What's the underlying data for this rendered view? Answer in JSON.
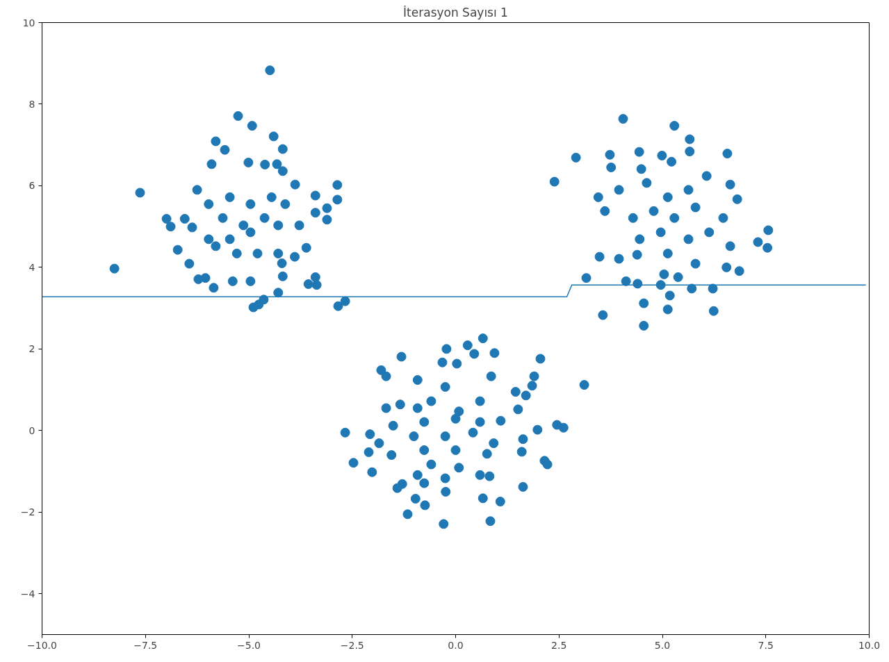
{
  "chart_data": {
    "type": "scatter",
    "title": "İterasyon Sayısı 1",
    "xlim": [
      -10,
      10
    ],
    "ylim": [
      -5,
      10
    ],
    "xticks": [
      {
        "value": -10,
        "label": "−10.0"
      },
      {
        "value": -7.5,
        "label": "−7.5"
      },
      {
        "value": -5,
        "label": "−5.0"
      },
      {
        "value": -2.5,
        "label": "−2.5"
      },
      {
        "value": 0,
        "label": "0.0"
      },
      {
        "value": 2.5,
        "label": "2.5"
      },
      {
        "value": 5,
        "label": "5.0"
      },
      {
        "value": 7.5,
        "label": "7.5"
      },
      {
        "value": 10,
        "label": "10.0"
      }
    ],
    "yticks": [
      {
        "value": -4,
        "label": "−4"
      },
      {
        "value": -2,
        "label": "−2"
      },
      0,
      2,
      4,
      6,
      8,
      10
    ],
    "grid": false,
    "series": [
      {
        "marker": "circle",
        "color": "#1f77b4",
        "x": [
          -4.49,
          -5.26,
          -4.92,
          -4.4,
          -5.8,
          -4.18,
          -5.58,
          -5.9,
          -5.01,
          -4.61,
          -4.32,
          -4.18,
          -2.86,
          -7.63,
          -6.25,
          -3.88,
          -3.39,
          -2.86,
          -3.11,
          -3.11,
          -6.99,
          -6.89,
          -6.55,
          -6.37,
          -5.97,
          -5.46,
          -4.96,
          -4.45,
          -4.12,
          -5.63,
          -5.13,
          -4.62,
          -4.29,
          -3.78,
          -5.97,
          -5.46,
          -4.96,
          -4.79,
          -5.29,
          -5.8,
          -6.72,
          -6.44,
          -4.29,
          -3.61,
          -3.89,
          -8.25,
          -6.22,
          -6.05,
          -5.85,
          -5.39,
          -4.96,
          -4.18,
          -4.2,
          -3.56,
          -3.36,
          -3.39,
          -4.29,
          -4.64,
          -4.89,
          -4.76,
          -2.84,
          -2.67,
          -3.39,
          4.05,
          5.29,
          5.66,
          5.66,
          2.91,
          3.73,
          4.44,
          4.99,
          6.57,
          5.22,
          2.39,
          3.76,
          4.49,
          6.64,
          6.07,
          3.45,
          3.95,
          4.62,
          5.13,
          5.63,
          6.81,
          3.61,
          4.29,
          4.79,
          5.29,
          5.8,
          6.47,
          7.56,
          7.31,
          7.54,
          4.45,
          4.96,
          5.63,
          6.13,
          6.64,
          3.48,
          3.95,
          4.39,
          5.13,
          5.8,
          6.86,
          6.55,
          3.16,
          4.12,
          4.4,
          5.04,
          5.38,
          4.96,
          5.71,
          6.22,
          5.18,
          4.55,
          3.56,
          5.13,
          6.24,
          4.55,
          0.66,
          0.29,
          -0.22,
          0.94,
          0.45,
          2.05,
          -1.31,
          -1.8,
          -1.68,
          -0.32,
          0.03,
          0.86,
          1.9,
          3.11,
          1.85,
          1.45,
          1.7,
          -0.92,
          -0.25,
          0.59,
          -1.34,
          -1.68,
          -0.92,
          -0.59,
          0.08,
          1.51,
          -0.76,
          0.0,
          0.59,
          1.09,
          2.45,
          2.61,
          1.98,
          -2.67,
          -2.07,
          -1.51,
          -1.01,
          -0.25,
          0.42,
          0.92,
          1.63,
          -1.85,
          -2.1,
          -1.55,
          -0.76,
          0.0,
          0.76,
          1.6,
          2.15,
          2.22,
          -2.47,
          -0.59,
          0.08,
          0.59,
          -2.02,
          -0.92,
          -0.25,
          0.82,
          -0.76,
          -1.29,
          -1.41,
          1.63,
          -0.24,
          0.66,
          1.08,
          -0.97,
          -0.74,
          -1.16,
          0.84,
          -0.29
        ],
        "values": [
          8.83,
          7.71,
          7.47,
          7.21,
          7.09,
          6.9,
          6.88,
          6.53,
          6.57,
          6.52,
          6.53,
          6.36,
          6.02,
          5.83,
          5.9,
          6.03,
          5.76,
          5.66,
          5.45,
          5.17,
          5.19,
          5.0,
          5.19,
          4.98,
          5.55,
          5.72,
          5.55,
          5.72,
          5.55,
          5.21,
          5.03,
          5.21,
          5.03,
          5.03,
          4.69,
          4.69,
          4.86,
          4.34,
          4.34,
          4.52,
          4.43,
          4.09,
          4.34,
          4.48,
          4.26,
          3.97,
          3.71,
          3.74,
          3.5,
          3.66,
          3.66,
          3.78,
          4.1,
          3.59,
          3.57,
          3.76,
          3.38,
          3.21,
          3.02,
          3.09,
          3.05,
          3.17,
          5.34,
          7.64,
          7.47,
          7.14,
          6.84,
          6.69,
          6.76,
          6.83,
          6.74,
          6.79,
          6.59,
          6.1,
          6.45,
          6.41,
          6.03,
          6.24,
          5.72,
          5.9,
          6.07,
          5.72,
          5.9,
          5.67,
          5.38,
          5.21,
          5.38,
          5.21,
          5.47,
          5.21,
          4.91,
          4.62,
          4.48,
          4.69,
          4.86,
          4.69,
          4.86,
          4.52,
          4.26,
          4.21,
          4.31,
          4.34,
          4.09,
          3.91,
          4.0,
          3.74,
          3.66,
          3.6,
          3.83,
          3.76,
          3.57,
          3.48,
          3.48,
          3.31,
          3.12,
          2.83,
          2.97,
          2.93,
          2.57,
          2.26,
          2.09,
          2.0,
          1.9,
          1.88,
          1.76,
          1.81,
          1.48,
          1.33,
          1.67,
          1.64,
          1.33,
          1.33,
          1.12,
          1.1,
          0.95,
          0.86,
          1.24,
          1.07,
          0.72,
          0.64,
          0.55,
          0.55,
          0.72,
          0.47,
          0.52,
          0.21,
          0.29,
          0.21,
          0.24,
          0.14,
          0.07,
          0.02,
          -0.05,
          -0.09,
          0.12,
          -0.14,
          -0.14,
          -0.05,
          -0.31,
          -0.21,
          -0.31,
          -0.53,
          -0.6,
          -0.48,
          -0.48,
          -0.57,
          -0.52,
          -0.74,
          -0.83,
          -0.79,
          -0.83,
          -0.91,
          -1.09,
          -1.02,
          -1.09,
          -1.17,
          -1.12,
          -1.29,
          -1.31,
          -1.41,
          -1.38,
          -1.5,
          -1.66,
          -1.74,
          -1.67,
          -1.83,
          -2.05,
          -2.22,
          -2.29
        ]
      },
      {
        "type": "line",
        "color": "#1f77b4",
        "x": [
          -10,
          2.69,
          2.81,
          9.92
        ],
        "values": [
          3.28,
          3.28,
          3.57,
          3.57
        ]
      }
    ]
  }
}
